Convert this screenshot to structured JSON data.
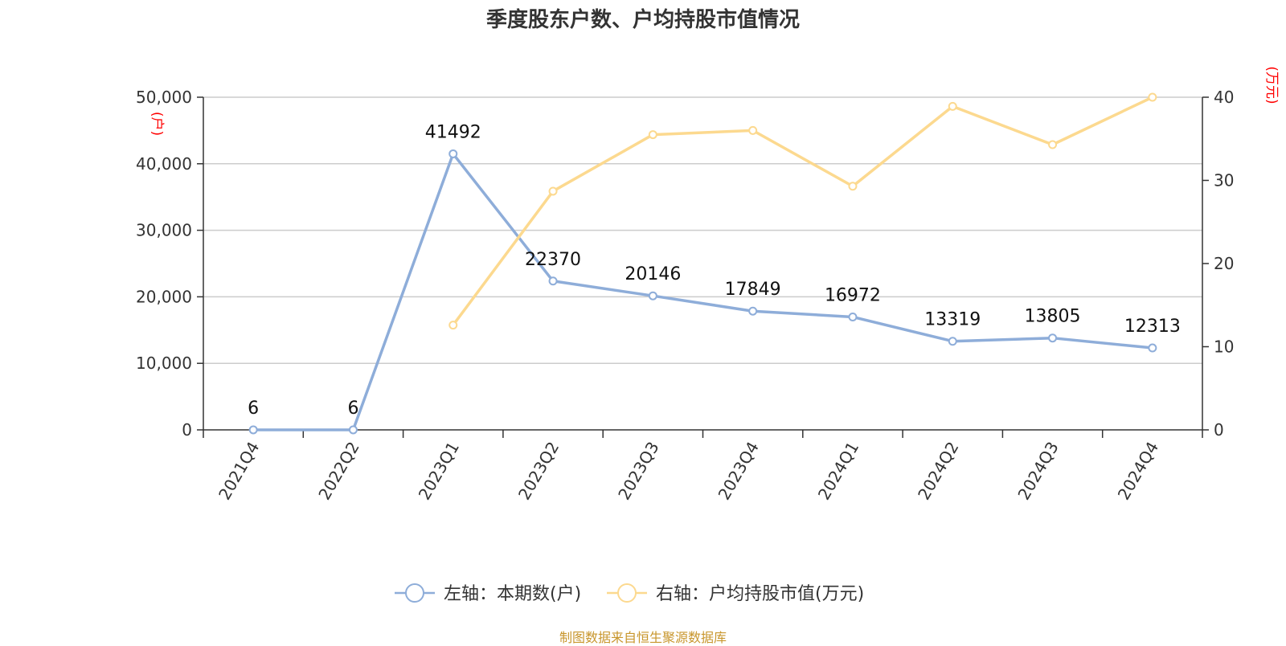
{
  "title": "季度股东户数、户均持股市值情况",
  "source": "制图数据来自恒生聚源数据库",
  "colors": {
    "left_series": "#8eadd9",
    "right_series": "#fcd98f",
    "grid": "#cccccc",
    "axis": "#333333",
    "unit": "#ff0000"
  },
  "chart_data": {
    "type": "line",
    "title": "季度股东户数、户均持股市值情况",
    "categories": [
      "2021Q4",
      "2022Q2",
      "2023Q1",
      "2023Q2",
      "2023Q3",
      "2023Q4",
      "2024Q1",
      "2024Q2",
      "2024Q3",
      "2024Q4"
    ],
    "y_left": {
      "unit": "(户)",
      "min": 0,
      "max": 50000,
      "ticks": [
        "0",
        "10,000",
        "20,000",
        "30,000",
        "40,000",
        "50,000"
      ]
    },
    "y_right": {
      "unit": "(万元)",
      "min": 0,
      "max": 40,
      "ticks": [
        "0",
        "10",
        "20",
        "30",
        "40"
      ]
    },
    "grid": true,
    "legend_position": "bottom",
    "series": [
      {
        "name": "左轴：本期数(户)",
        "axis": "left",
        "values": [
          6,
          6,
          41492,
          22370,
          20146,
          17849,
          16972,
          13319,
          13805,
          12313
        ],
        "labels": [
          "6",
          "6",
          "41492",
          "22370",
          "20146",
          "17849",
          "16972",
          "13319",
          "13805",
          "12313"
        ]
      },
      {
        "name": "右轴：户均持股市值(万元)",
        "axis": "right",
        "values": [
          null,
          null,
          12.6,
          28.7,
          35.5,
          36.0,
          29.3,
          38.9,
          34.3,
          40.0
        ]
      }
    ]
  }
}
